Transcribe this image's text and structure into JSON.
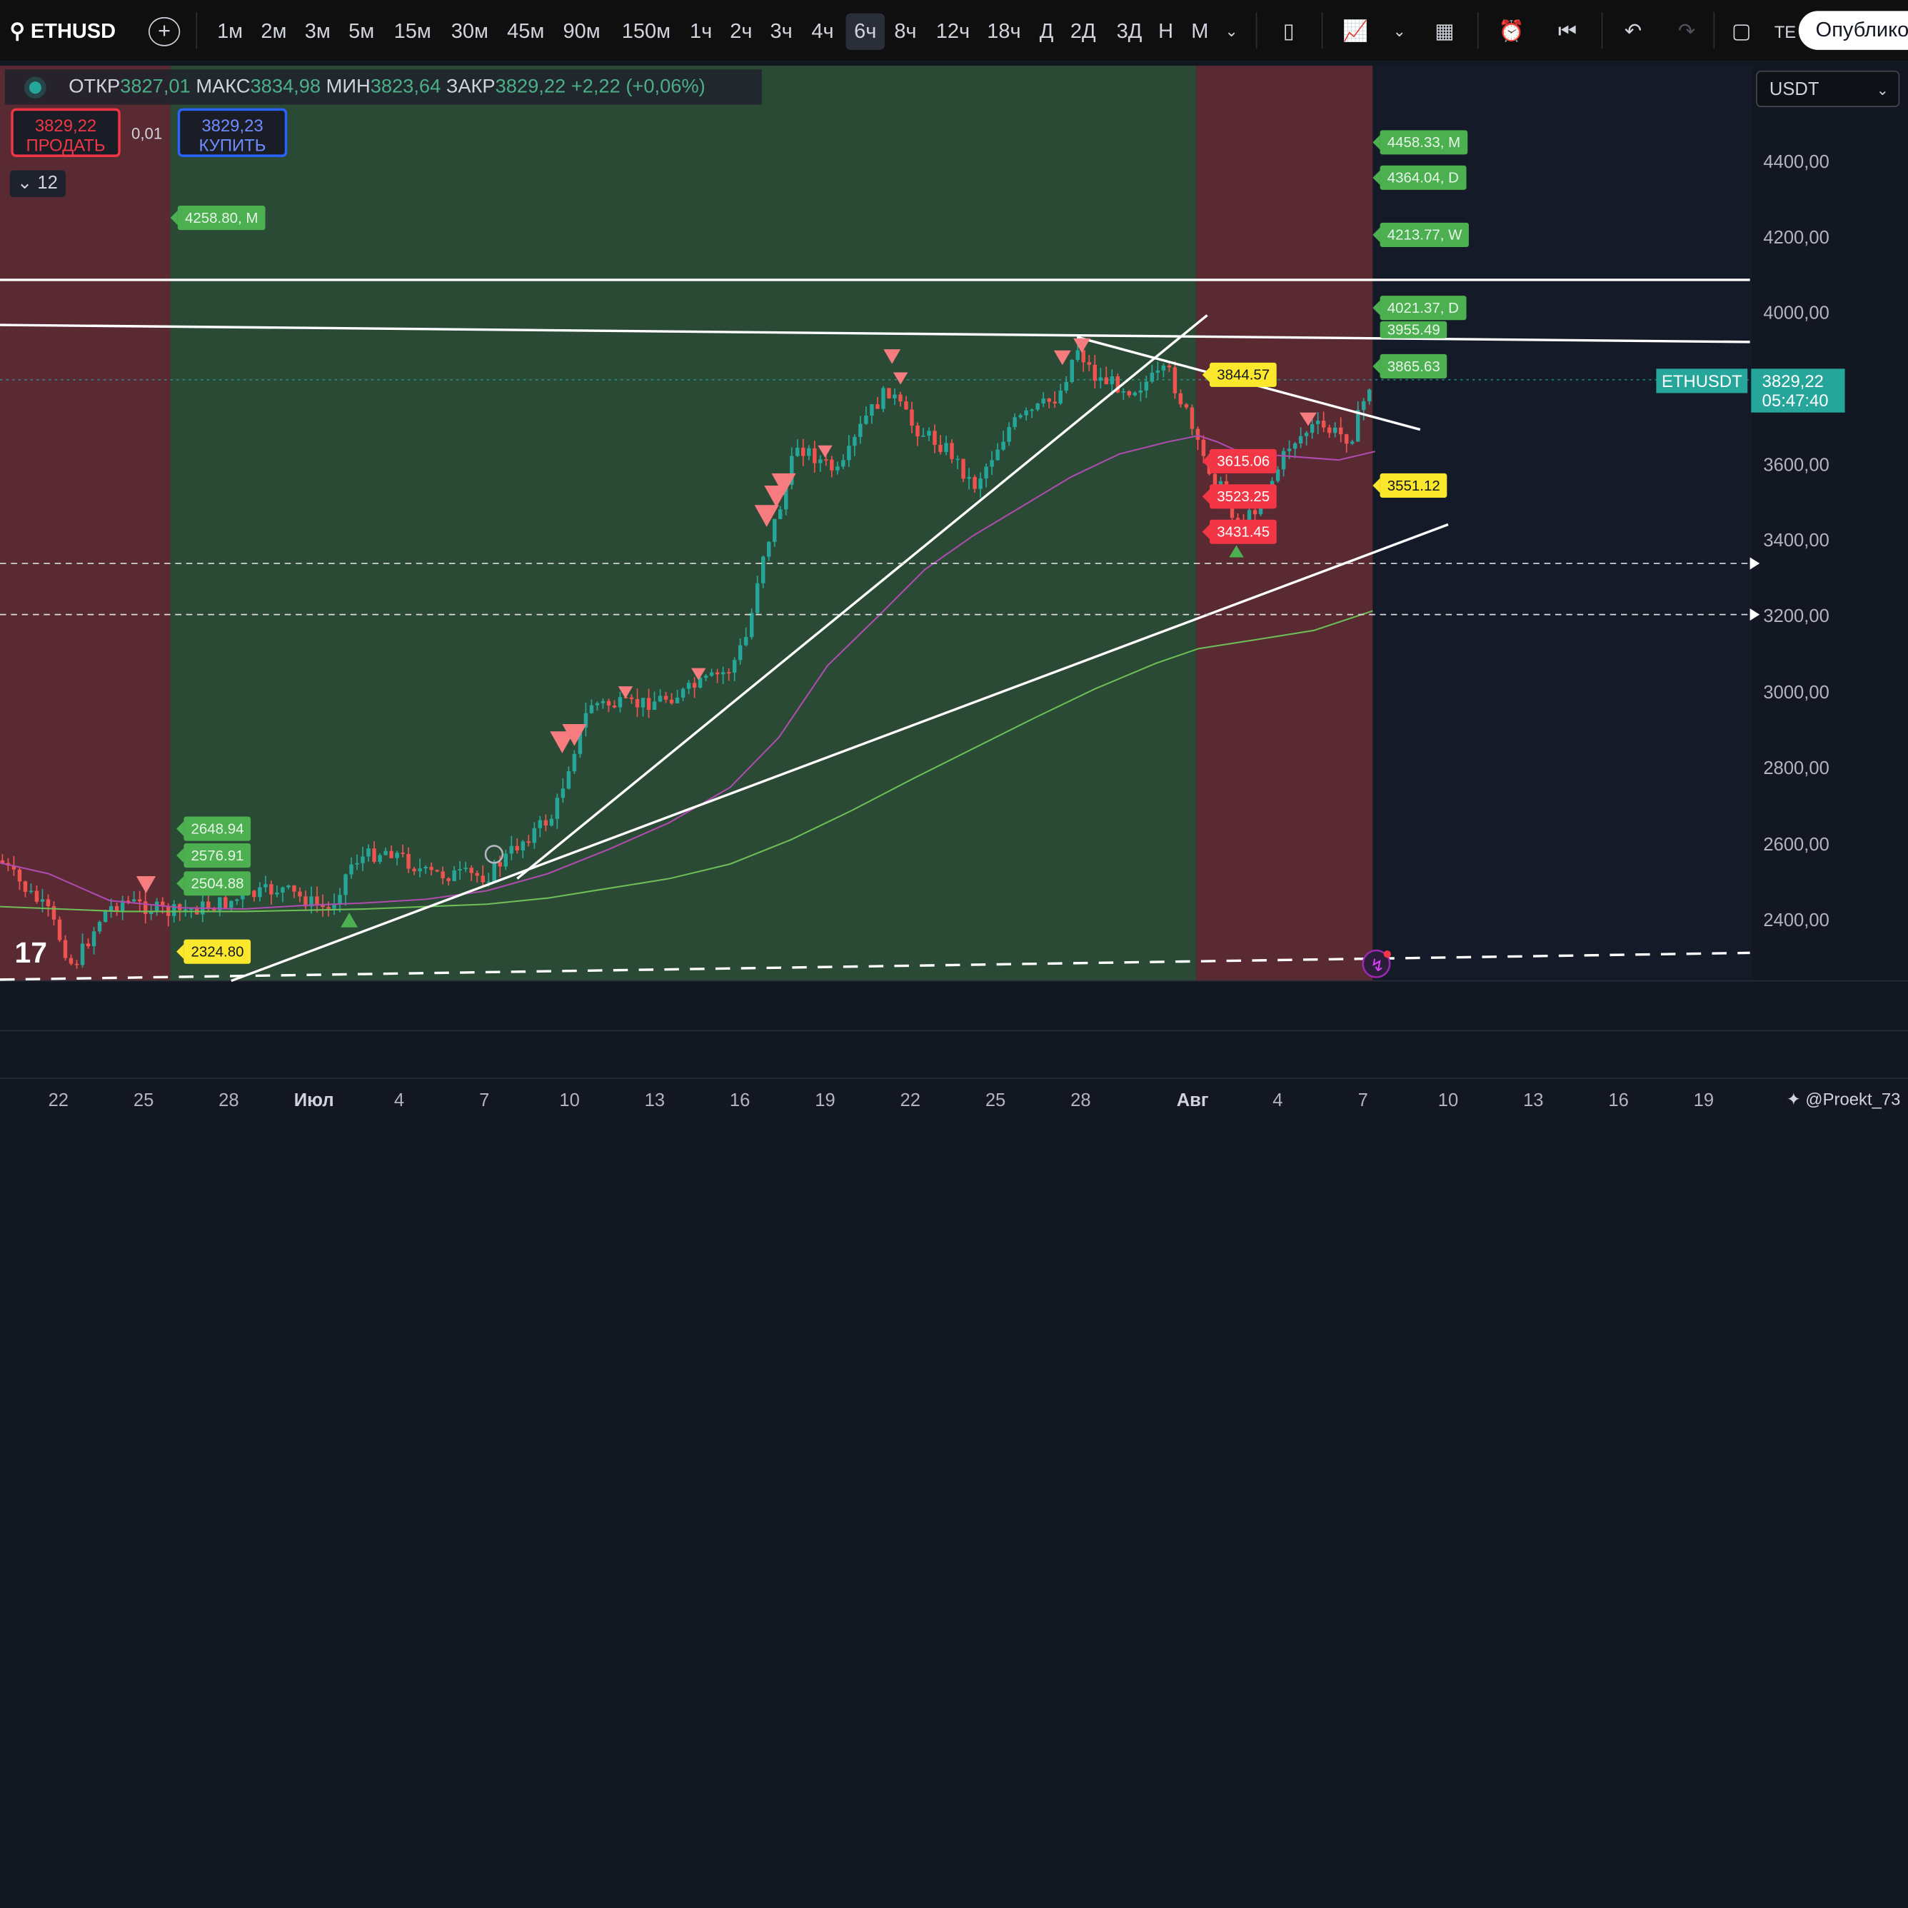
{
  "toolbar": {
    "symbol": "ETHUSD",
    "timeframes": [
      "1м",
      "2м",
      "3м",
      "5м",
      "15м",
      "30м",
      "45м",
      "90м",
      "150м",
      "1ч",
      "2ч",
      "3ч",
      "4ч",
      "6ч",
      "8ч",
      "12ч",
      "18ч",
      "Д",
      "2Д",
      "3Д",
      "Н",
      "М"
    ],
    "active_timeframe": "6ч",
    "publish_label": "Опублико",
    "cut_label": "ТЕ"
  },
  "legend": {
    "open_label": "ОТКР",
    "open": "3827,01",
    "high_label": "МАКС",
    "high": "3834,98",
    "low_label": "МИН",
    "low": "3823,64",
    "close_label": "ЗАКР",
    "close": "3829,22",
    "change": "+2,22 (+0,06%)",
    "sell_price": "3829,22",
    "sell_label": "ПРОДАТЬ",
    "buy_price": "3829,23",
    "buy_label": "КУПИТЬ",
    "spread": "0,01",
    "indicators_count": "12"
  },
  "currency_selector": "USDT",
  "price_axis": [
    "4400,00",
    "4200,00",
    "4000,00",
    "3600,00",
    "3400,00",
    "3200,00",
    "3000,00",
    "2800,00",
    "2600,00",
    "2400,00"
  ],
  "time_axis": [
    "22",
    "25",
    "28",
    "Июл",
    "4",
    "7",
    "10",
    "13",
    "16",
    "19",
    "22",
    "25",
    "28",
    "Авг",
    "4",
    "7",
    "10",
    "13",
    "16",
    "19"
  ],
  "current_price": {
    "symbol": "ETHUSDT",
    "price": "3829,22",
    "countdown": "05:47:40"
  },
  "levels_left": [
    "4258.80, M",
    "2648.94",
    "2576.91",
    "2504.88",
    "2324.80"
  ],
  "levels_right": [
    "4458.33, M",
    "4364.04, D",
    "4213.77, W",
    "4021.37, D",
    "3955.49",
    "3865.63",
    "3844.57",
    "3615.06",
    "3523.25",
    "3431.45",
    "3551.12"
  ],
  "watermark": "@Proekt_73",
  "colors": {
    "up": "#26a69a",
    "down": "#ef5350",
    "green_zone": "#2b4a35",
    "red_zone": "#5a2a33",
    "accent": "#26a69a"
  },
  "chart_data": {
    "type": "candlestick",
    "symbol": "ETHUSD",
    "interval": "6h",
    "x": [
      "22",
      "25",
      "28",
      "Июл",
      "4",
      "7",
      "10",
      "13",
      "16",
      "19",
      "22",
      "25",
      "28",
      "Авг",
      "4",
      "7"
    ],
    "close_approx": [
      2440,
      2420,
      2430,
      2440,
      2560,
      2520,
      2950,
      2950,
      3600,
      3620,
      3700,
      3750,
      3900,
      3650,
      3600,
      3829
    ],
    "ylim": [
      2300,
      4550
    ],
    "last": {
      "open": 3827.01,
      "high": 3834.98,
      "low": 3823.64,
      "close": 3829.22
    }
  }
}
